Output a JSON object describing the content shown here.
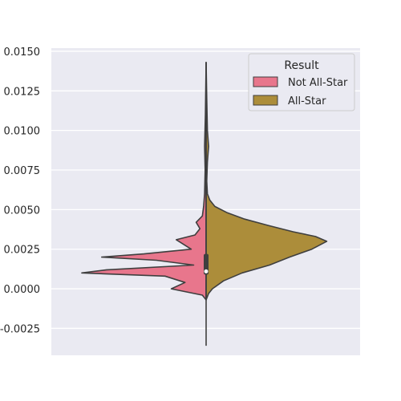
{
  "chart_data": {
    "type": "violin",
    "title": "",
    "xlabel": "",
    "ylabel": "",
    "ylim": [
      -0.0042,
      0.0152
    ],
    "yticks": [
      -0.0025,
      0.0,
      0.0025,
      0.005,
      0.0075,
      0.01,
      0.0125,
      0.015
    ],
    "ytick_labels": [
      "-0.0025",
      "0.0000",
      "0.0025",
      "0.0050",
      "0.0075",
      "0.0100",
      "0.0125",
      "0.0150"
    ],
    "grid": true,
    "split": true,
    "legend": {
      "title": "Result",
      "placement": "top-right",
      "entries": [
        {
          "label": "Not All-Star",
          "color": "#e8768c"
        },
        {
          "label": "All-Star",
          "color": "#ac8d3a"
        }
      ]
    },
    "series": [
      {
        "name": "Not All-Star",
        "side": "left",
        "color": "#e8768c",
        "density_profile": [
          [
            -0.0007,
            0.0
          ],
          [
            -0.0004,
            0.03
          ],
          [
            0.0,
            0.28
          ],
          [
            0.0004,
            0.17
          ],
          [
            0.0008,
            0.33
          ],
          [
            0.001,
            1.0
          ],
          [
            0.0012,
            0.8
          ],
          [
            0.0015,
            0.1
          ],
          [
            0.0018,
            0.4
          ],
          [
            0.002,
            0.84
          ],
          [
            0.0022,
            0.5
          ],
          [
            0.0025,
            0.12
          ],
          [
            0.0028,
            0.18
          ],
          [
            0.0031,
            0.24
          ],
          [
            0.0034,
            0.09
          ],
          [
            0.0038,
            0.05
          ],
          [
            0.0042,
            0.08
          ],
          [
            0.0046,
            0.03
          ],
          [
            0.0052,
            0.02
          ],
          [
            0.006,
            0.012
          ],
          [
            0.0075,
            0.008
          ],
          [
            0.009,
            0.012
          ],
          [
            0.011,
            0.006
          ],
          [
            0.0143,
            0.0
          ]
        ]
      },
      {
        "name": "All-Star",
        "side": "right",
        "color": "#ac8d3a",
        "density_profile": [
          [
            -0.0007,
            0.0
          ],
          [
            -0.0003,
            0.02
          ],
          [
            0.0,
            0.05
          ],
          [
            0.0005,
            0.14
          ],
          [
            0.001,
            0.29
          ],
          [
            0.0015,
            0.51
          ],
          [
            0.002,
            0.67
          ],
          [
            0.0025,
            0.85
          ],
          [
            0.003,
            0.97
          ],
          [
            0.0033,
            0.88
          ],
          [
            0.0036,
            0.7
          ],
          [
            0.004,
            0.5
          ],
          [
            0.0044,
            0.31
          ],
          [
            0.0048,
            0.17
          ],
          [
            0.0052,
            0.07
          ],
          [
            0.0056,
            0.03
          ],
          [
            0.006,
            0.01
          ],
          [
            0.0068,
            0.005
          ],
          [
            0.008,
            0.01
          ],
          [
            0.009,
            0.02
          ],
          [
            0.01,
            0.01
          ],
          [
            0.012,
            0.005
          ],
          [
            0.0143,
            0.0
          ]
        ]
      }
    ],
    "inner_box": {
      "whisker_low": -0.0036,
      "q1": 0.0009,
      "median": 0.0011,
      "q3": 0.0022,
      "whisker_high": 0.0143
    }
  }
}
